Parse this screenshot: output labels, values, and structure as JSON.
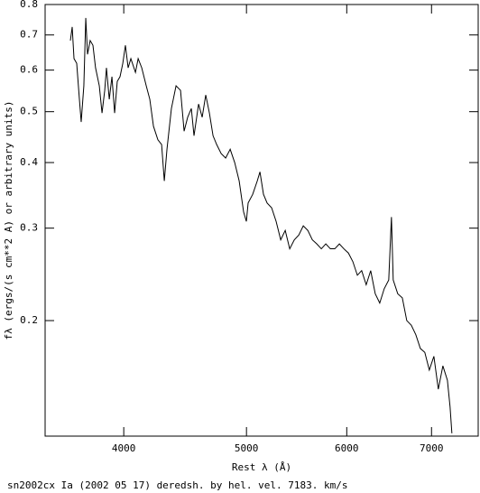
{
  "chart_data": {
    "type": "line",
    "title": "sn2002cx Ia (2002 05 17) deredsh. by hel. vel.  7183. km/s",
    "x_label": "Rest λ (Å)",
    "y_label": "fλ (ergs/(s cm**2 A) or arbitrary units)",
    "x_scale": "log",
    "y_scale": "log",
    "xlim": [
      3467,
      7620
    ],
    "ylim": [
      0.1205,
      0.8
    ],
    "xticks": [
      4000,
      5000,
      6000,
      7000
    ],
    "yticks": [
      0.2,
      0.3,
      0.4,
      0.5,
      0.6,
      0.7,
      0.8
    ],
    "color": "#000000",
    "x": [
      3630,
      3642,
      3654,
      3672,
      3690,
      3702,
      3720,
      3733,
      3745,
      3763,
      3782,
      3800,
      3826,
      3845,
      3864,
      3876,
      3896,
      3915,
      3934,
      3953,
      3973,
      3993,
      4012,
      4032,
      4052,
      4086,
      4106,
      4133,
      4167,
      4194,
      4222,
      4256,
      4285,
      4306,
      4327,
      4362,
      4399,
      4435,
      4464,
      4493,
      4523,
      4545,
      4583,
      4613,
      4643,
      4674,
      4705,
      4736,
      4775,
      4814,
      4854,
      4894,
      4934,
      4974,
      4999,
      5015,
      5057,
      5099,
      5124,
      5157,
      5191,
      5234,
      5277,
      5321,
      5365,
      5409,
      5454,
      5499,
      5544,
      5590,
      5636,
      5682,
      5729,
      5776,
      5824,
      5871,
      5920,
      5969,
      6018,
      6067,
      6117,
      6165,
      6216,
      6267,
      6319,
      6371,
      6423,
      6476,
      6508,
      6529,
      6583,
      6638,
      6692,
      6747,
      6803,
      6859,
      6915,
      6972,
      7030,
      7087,
      7146,
      7205,
      7240,
      7264
    ],
    "values": [
      0.683,
      0.725,
      0.631,
      0.618,
      0.528,
      0.478,
      0.56,
      0.754,
      0.643,
      0.683,
      0.669,
      0.606,
      0.56,
      0.497,
      0.549,
      0.606,
      0.528,
      0.583,
      0.497,
      0.571,
      0.583,
      0.618,
      0.669,
      0.606,
      0.631,
      0.594,
      0.631,
      0.606,
      0.56,
      0.528,
      0.469,
      0.442,
      0.433,
      0.369,
      0.424,
      0.507,
      0.56,
      0.549,
      0.459,
      0.488,
      0.507,
      0.45,
      0.517,
      0.488,
      0.538,
      0.497,
      0.45,
      0.433,
      0.416,
      0.408,
      0.424,
      0.4,
      0.369,
      0.322,
      0.309,
      0.335,
      0.348,
      0.369,
      0.384,
      0.348,
      0.335,
      0.328,
      0.309,
      0.285,
      0.297,
      0.274,
      0.285,
      0.291,
      0.303,
      0.297,
      0.285,
      0.28,
      0.274,
      0.28,
      0.274,
      0.274,
      0.28,
      0.274,
      0.269,
      0.259,
      0.244,
      0.249,
      0.234,
      0.249,
      0.225,
      0.216,
      0.23,
      0.239,
      0.315,
      0.239,
      0.225,
      0.221,
      0.2,
      0.196,
      0.188,
      0.177,
      0.174,
      0.161,
      0.171,
      0.148,
      0.164,
      0.154,
      0.137,
      0.122
    ]
  }
}
